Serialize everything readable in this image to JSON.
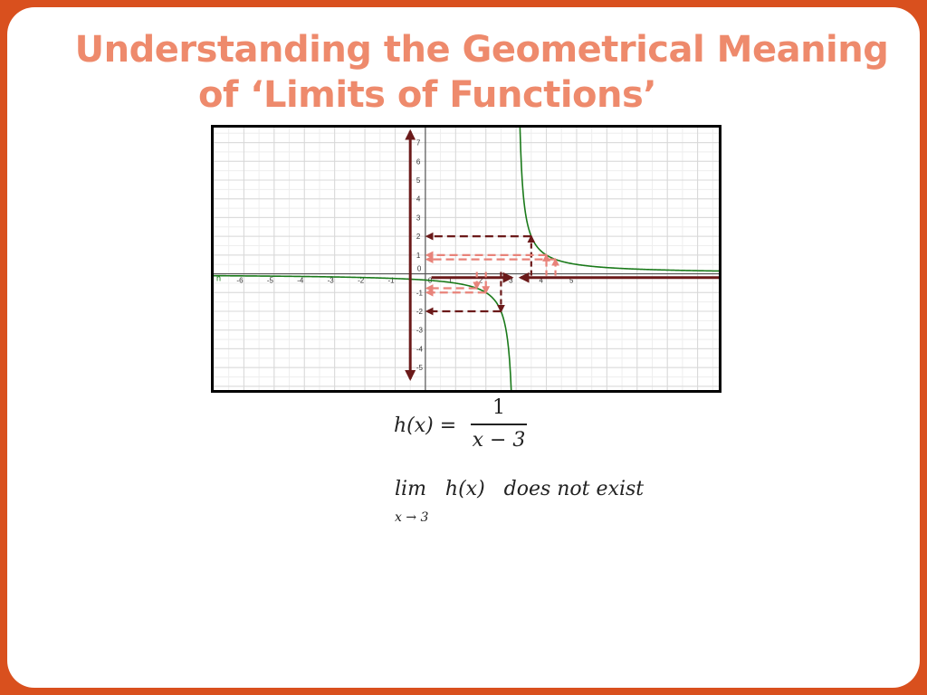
{
  "title": {
    "line1": "Understanding the Geometrical Meaning",
    "line2": "of  ‘Limits of Functions’"
  },
  "equation": {
    "lhs": "h(x) =",
    "numerator": "1",
    "denominator": "x − 3"
  },
  "limit": {
    "expression": "lim   h(x)   does not exist",
    "subscript": "x → 3"
  },
  "chart_data": {
    "type": "line",
    "function": "h(x) = 1/(x - 3)",
    "series": [
      {
        "name": "h",
        "color": "#1a7a1a",
        "x_range": [
          -7,
          9.7
        ],
        "vertical_asymptote": 3
      }
    ],
    "xlim": [
      -7,
      9.7
    ],
    "ylim": [
      -6.2,
      7.8
    ],
    "x_ticks": [
      -6,
      -5,
      -4,
      -3,
      -2,
      -1,
      0,
      1,
      2,
      3,
      4,
      5
    ],
    "x_tick_labels": [
      "-6",
      "-5",
      "-4",
      "-3",
      "-2",
      "-1",
      "0",
      "1",
      "2",
      "3",
      "4",
      "5"
    ],
    "y_ticks": [
      -5,
      -4,
      -3,
      -2,
      -1,
      0,
      1,
      2,
      3,
      4,
      5,
      6,
      7
    ],
    "y_tick_labels": [
      "-5",
      "-4",
      "-3",
      "-2",
      "-1",
      "0",
      "1",
      "2",
      "3",
      "4",
      "5",
      "6",
      "7"
    ],
    "grid": true,
    "annotations": {
      "y_axis_double_arrow": {
        "y_from": -5.6,
        "y_to": 7.6,
        "color": "#6b1a1a"
      },
      "x_right_arrow": {
        "x_from": 0.2,
        "x_to": 2.85,
        "y": -0.2,
        "color": "#6b1a1a"
      },
      "x_left_arrow": {
        "x_from": 9.7,
        "x_to": 3.15,
        "y": -0.2,
        "color": "#6b1a1a"
      },
      "dashed_levels": [
        {
          "x": 3.5,
          "y": 2,
          "color": "#6b1a1a"
        },
        {
          "x": 4,
          "y": 1,
          "color": "#e8837a"
        },
        {
          "x": 4.3,
          "y": 0.77,
          "color": "#e8837a"
        },
        {
          "x": 2.5,
          "y": -2,
          "color": "#6b1a1a"
        },
        {
          "x": 2,
          "y": -1,
          "color": "#e8837a"
        },
        {
          "x": 1.7,
          "y": -0.77,
          "color": "#e8837a"
        }
      ]
    }
  }
}
